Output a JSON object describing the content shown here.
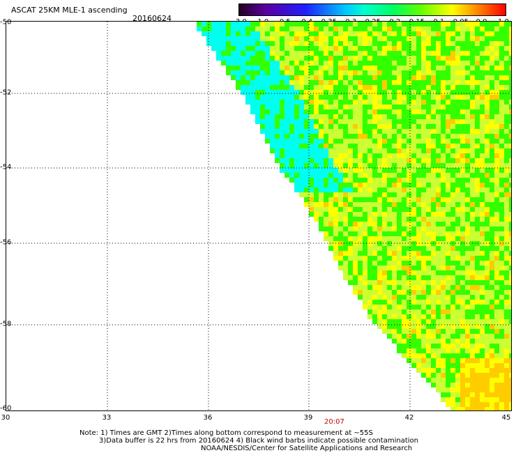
{
  "title": "ASCAT 25KM MLE-1 ascending",
  "date": "20160624",
  "colorbar": {
    "ticks": [
      "-3.0",
      "-1.0",
      "-0.5",
      "-0.4",
      "-0.35",
      "-0.3",
      "-0.25",
      "-0.2",
      "-0.15",
      "-0.1",
      "-0.05",
      "0.0",
      "1.0"
    ]
  },
  "axes": {
    "lat_labels": [
      "-50",
      "-52",
      "-54",
      "-56",
      "-58",
      "-60"
    ],
    "lon_labels": [
      "30",
      "33",
      "36",
      "39",
      "42",
      "45"
    ]
  },
  "time_label": "20:07",
  "notes": [
    "Note: 1) Times are GMT 2)Times along bottom correspond to measurement at ~55S",
    "3)Data buffer is 22 hrs from 20160624 4) Black wind barbs indicate possible contamination",
    "NOAA/NESDIS/Center for Satellite Applications and Research"
  ],
  "colors": {
    "cyan": "#00ffee",
    "green": "#33ff00",
    "yellow_green": "#ccff33",
    "yellow": "#ffff00",
    "orange": "#ffcc00"
  }
}
